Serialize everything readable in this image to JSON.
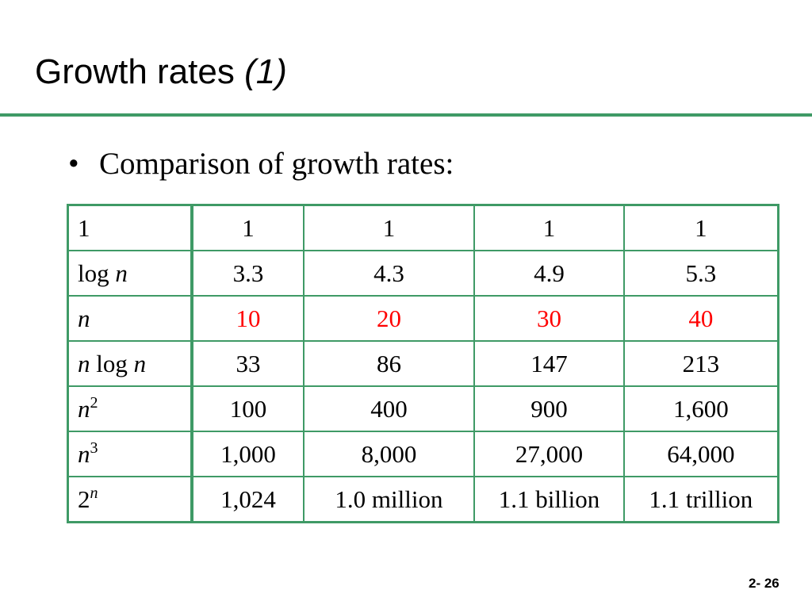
{
  "title": {
    "main": "Growth rates ",
    "sub": "(1)"
  },
  "bullet": {
    "symbol": "•",
    "text": "Comparison of growth rates:"
  },
  "table": {
    "rows": [
      {
        "label": [
          "1"
        ],
        "values": [
          "1",
          "1",
          "1",
          "1"
        ],
        "highlight": false
      },
      {
        "label": [
          "log ",
          "n"
        ],
        "values": [
          "3.3",
          "4.3",
          "4.9",
          "5.3"
        ],
        "highlight": false
      },
      {
        "label": [
          "n"
        ],
        "values": [
          "10",
          "20",
          "30",
          "40"
        ],
        "highlight": true
      },
      {
        "label": [
          "n",
          " log ",
          "n"
        ],
        "values": [
          "33",
          "86",
          "147",
          "213"
        ],
        "highlight": false
      },
      {
        "label": [
          "n",
          "2"
        ],
        "values": [
          "100",
          "400",
          "900",
          "1,600"
        ],
        "highlight": false
      },
      {
        "label": [
          "n",
          "3"
        ],
        "values": [
          "1,000",
          "8,000",
          "27,000",
          "64,000"
        ],
        "highlight": false
      },
      {
        "label": [
          "2",
          "n"
        ],
        "values": [
          "1,024",
          "1.0 million",
          "1.1 billion",
          "1.1 trillion"
        ],
        "highlight": false
      }
    ],
    "highlight_color": "#ff0000",
    "border_color": "#3f9a66"
  },
  "footer": {
    "page_number": "2- 26"
  }
}
